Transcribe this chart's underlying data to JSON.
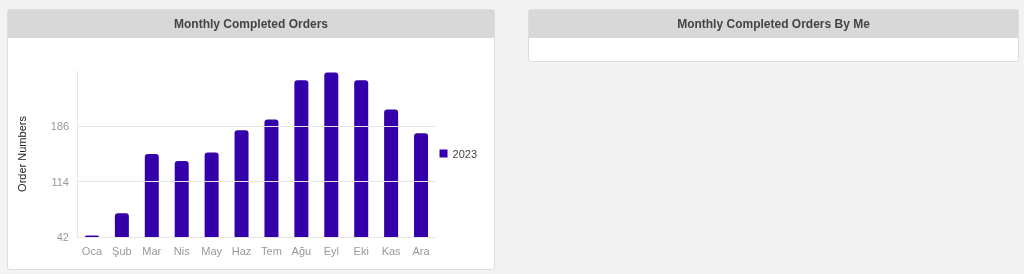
{
  "chart_data": [
    {
      "type": "bar",
      "title": "Monthly Completed Orders",
      "ylabel": "Order Numbers",
      "categories": [
        "Oca",
        "Şub",
        "Mar",
        "Nis",
        "May",
        "Haz",
        "Tem",
        "Ağu",
        "Eyl",
        "Eki",
        "Kas",
        "Ara"
      ],
      "series": [
        {
          "name": "2023",
          "color": "#3300aa",
          "values": [
            44,
            73,
            150,
            141,
            152,
            181,
            195,
            246,
            256,
            246,
            208,
            177
          ]
        }
      ],
      "ylim": [
        42,
        258
      ],
      "yticks": [
        42,
        114,
        186
      ],
      "grid": "y",
      "legend": "right"
    },
    {
      "type": "other",
      "title": "Monthly Completed Orders By Me"
    }
  ]
}
